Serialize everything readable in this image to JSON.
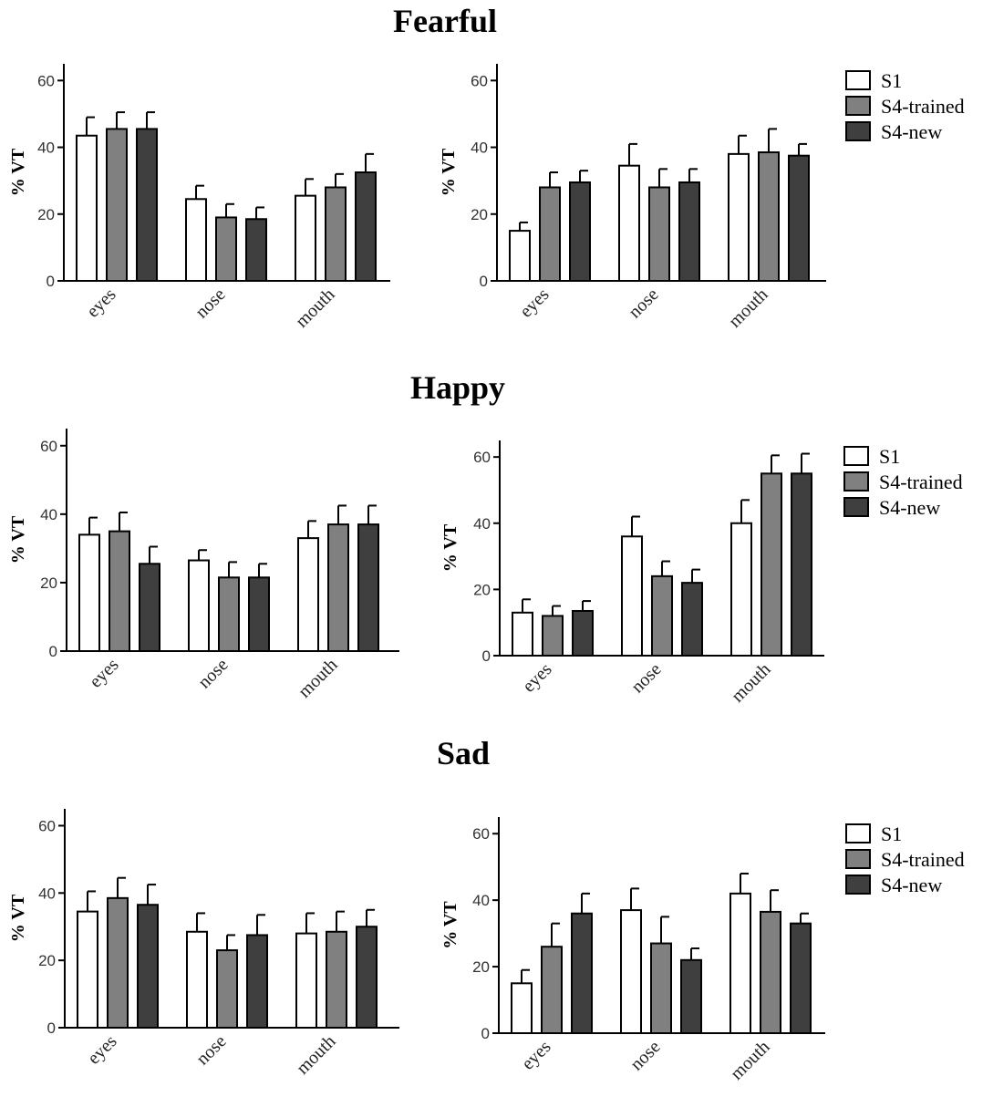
{
  "titles": [
    "Fearful",
    "Happy",
    "Sad"
  ],
  "legend": {
    "entries": [
      "S1",
      "S4-trained",
      "S4-new"
    ],
    "colors": [
      "#ffffff",
      "#808080",
      "#3f3f3f"
    ]
  },
  "chart_data": [
    {
      "type": "bar",
      "group": "Fearful",
      "panel": "left",
      "categories": [
        "eyes",
        "nose",
        "mouth"
      ],
      "ylabel": "% VT",
      "ylim": [
        0,
        65
      ],
      "yticks": [
        0,
        20,
        40,
        60
      ],
      "series": [
        {
          "name": "S1",
          "values": [
            43.5,
            24.5,
            25.5
          ],
          "errors": [
            5.5,
            4,
            5
          ]
        },
        {
          "name": "S4-trained",
          "values": [
            45.5,
            19,
            28
          ],
          "errors": [
            5,
            4,
            4
          ]
        },
        {
          "name": "S4-new",
          "values": [
            45.5,
            18.5,
            32.5
          ],
          "errors": [
            5,
            3.5,
            5.5
          ]
        }
      ]
    },
    {
      "type": "bar",
      "group": "Fearful",
      "panel": "right",
      "categories": [
        "eyes",
        "nose",
        "mouth"
      ],
      "ylabel": "% VT",
      "ylim": [
        0,
        65
      ],
      "yticks": [
        0,
        20,
        40,
        60
      ],
      "series": [
        {
          "name": "S1",
          "values": [
            15,
            34.5,
            38
          ],
          "errors": [
            2.5,
            6.5,
            5.5
          ]
        },
        {
          "name": "S4-trained",
          "values": [
            28,
            28,
            38.5
          ],
          "errors": [
            4.5,
            5.5,
            7
          ]
        },
        {
          "name": "S4-new",
          "values": [
            29.5,
            29.5,
            37.5
          ],
          "errors": [
            3.5,
            4,
            3.5
          ]
        }
      ]
    },
    {
      "type": "bar",
      "group": "Happy",
      "panel": "left",
      "categories": [
        "eyes",
        "nose",
        "mouth"
      ],
      "ylabel": "% VT",
      "ylim": [
        0,
        65
      ],
      "yticks": [
        0,
        20,
        40,
        60
      ],
      "series": [
        {
          "name": "S1",
          "values": [
            34,
            26.5,
            33
          ],
          "errors": [
            5,
            3,
            5
          ]
        },
        {
          "name": "S4-trained",
          "values": [
            35,
            21.5,
            37
          ],
          "errors": [
            5.5,
            4.5,
            5.5
          ]
        },
        {
          "name": "S4-new",
          "values": [
            25.5,
            21.5,
            37
          ],
          "errors": [
            5,
            4,
            5.5
          ]
        }
      ]
    },
    {
      "type": "bar",
      "group": "Happy",
      "panel": "right",
      "categories": [
        "eyes",
        "nose",
        "mouth"
      ],
      "ylabel": "% VT",
      "ylim": [
        0,
        65
      ],
      "yticks": [
        0,
        20,
        40,
        60
      ],
      "series": [
        {
          "name": "S1",
          "values": [
            13,
            36,
            40
          ],
          "errors": [
            4,
            6,
            7
          ]
        },
        {
          "name": "S4-trained",
          "values": [
            12,
            24,
            55
          ],
          "errors": [
            3,
            4.5,
            5.5
          ]
        },
        {
          "name": "S4-new",
          "values": [
            13.5,
            22,
            55
          ],
          "errors": [
            3,
            4,
            6
          ]
        }
      ]
    },
    {
      "type": "bar",
      "group": "Sad",
      "panel": "left",
      "categories": [
        "eyes",
        "nose",
        "mouth"
      ],
      "ylabel": "% VT",
      "ylim": [
        0,
        65
      ],
      "yticks": [
        0,
        20,
        40,
        60
      ],
      "series": [
        {
          "name": "S1",
          "values": [
            34.5,
            28.5,
            28
          ],
          "errors": [
            6,
            5.5,
            6
          ]
        },
        {
          "name": "S4-trained",
          "values": [
            38.5,
            23,
            28.5
          ],
          "errors": [
            6,
            4.5,
            6
          ]
        },
        {
          "name": "S4-new",
          "values": [
            36.5,
            27.5,
            30
          ],
          "errors": [
            6,
            6,
            5
          ]
        }
      ]
    },
    {
      "type": "bar",
      "group": "Sad",
      "panel": "right",
      "categories": [
        "eyes",
        "nose",
        "mouth"
      ],
      "ylabel": "% VT",
      "ylim": [
        0,
        65
      ],
      "yticks": [
        0,
        20,
        40,
        60
      ],
      "series": [
        {
          "name": "S1",
          "values": [
            15,
            37,
            42
          ],
          "errors": [
            4,
            6.5,
            6
          ]
        },
        {
          "name": "S4-trained",
          "values": [
            26,
            27,
            36.5
          ],
          "errors": [
            7,
            8,
            6.5
          ]
        },
        {
          "name": "S4-new",
          "values": [
            36,
            22,
            33
          ],
          "errors": [
            6,
            3.5,
            3
          ]
        }
      ]
    }
  ]
}
